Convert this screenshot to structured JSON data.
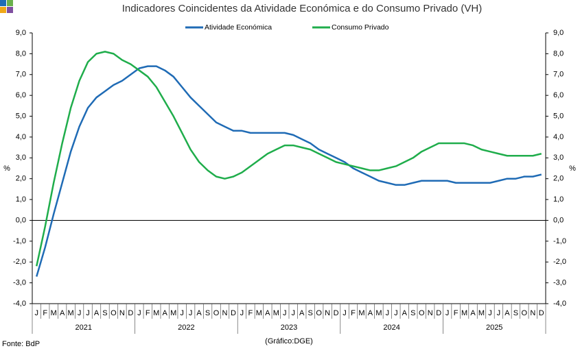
{
  "chart_data": {
    "type": "line",
    "title": "Indicadores Coincidentes da Atividade Económica e do Consumo Privado (VH)",
    "ylabel": "%",
    "y2label": "%",
    "source": "Fonte: BdP",
    "credit": "(Gráfico:DGE)",
    "categories": [
      "J",
      "F",
      "M",
      "A",
      "M",
      "J",
      "J",
      "A",
      "S",
      "O",
      "N",
      "D",
      "J",
      "F",
      "M",
      "A",
      "M",
      "J",
      "J",
      "A",
      "S",
      "O",
      "N",
      "D",
      "J",
      "F",
      "M",
      "A",
      "M",
      "J",
      "J",
      "A",
      "S",
      "O",
      "N",
      "D",
      "J",
      "F",
      "M",
      "A",
      "M",
      "J",
      "J",
      "A",
      "S",
      "O",
      "N",
      "D",
      "J",
      "F",
      "M",
      "A",
      "M",
      "J",
      "J",
      "A",
      "S",
      "O",
      "N",
      "D"
    ],
    "years": [
      "2021",
      "2022",
      "2023",
      "2024",
      "2025"
    ],
    "series": [
      {
        "name": "Atividade Económica",
        "color": "#1f6bb5",
        "values": [
          -2.7,
          -1.3,
          0.3,
          1.8,
          3.3,
          4.5,
          5.4,
          5.9,
          6.2,
          6.5,
          6.7,
          7.0,
          7.3,
          7.4,
          7.4,
          7.2,
          6.9,
          6.4,
          5.9,
          5.5,
          5.1,
          4.7,
          4.5,
          4.3,
          4.3,
          4.2,
          4.2,
          4.2,
          4.2,
          4.2,
          4.1,
          3.9,
          3.7,
          3.4,
          3.2,
          3.0,
          2.8,
          2.5,
          2.3,
          2.1,
          1.9,
          1.8,
          1.7,
          1.7,
          1.8,
          1.9,
          1.9,
          1.9,
          1.9,
          1.8,
          1.8,
          1.8,
          1.8,
          1.8,
          1.9,
          2.0,
          2.0,
          2.1,
          2.1,
          2.2
        ]
      },
      {
        "name": "Consumo Privado",
        "color": "#1fad4b",
        "values": [
          -2.2,
          -0.3,
          1.8,
          3.7,
          5.4,
          6.7,
          7.6,
          8.0,
          8.1,
          8.0,
          7.7,
          7.5,
          7.2,
          6.9,
          6.4,
          5.7,
          5.0,
          4.2,
          3.4,
          2.8,
          2.4,
          2.1,
          2.0,
          2.1,
          2.3,
          2.6,
          2.9,
          3.2,
          3.4,
          3.6,
          3.6,
          3.5,
          3.4,
          3.2,
          3.0,
          2.8,
          2.7,
          2.6,
          2.5,
          2.4,
          2.4,
          2.5,
          2.6,
          2.8,
          3.0,
          3.3,
          3.5,
          3.7,
          3.7,
          3.7,
          3.7,
          3.6,
          3.4,
          3.3,
          3.2,
          3.1,
          3.1,
          3.1,
          3.1,
          3.2
        ]
      }
    ],
    "ylim": [
      -4,
      9
    ],
    "yticks": [
      {
        "value": 9,
        "label": "9,0"
      },
      {
        "value": 8,
        "label": "8,0"
      },
      {
        "value": 7,
        "label": "7,0"
      },
      {
        "value": 6,
        "label": "6,0"
      },
      {
        "value": 5,
        "label": "5,0"
      },
      {
        "value": 4,
        "label": "4,0"
      },
      {
        "value": 3,
        "label": "3,0"
      },
      {
        "value": 2,
        "label": "2,0"
      },
      {
        "value": 1,
        "label": "1,0"
      },
      {
        "value": 0,
        "label": "0,0"
      },
      {
        "value": -1,
        "label": "-1,0"
      },
      {
        "value": -2,
        "label": "-2,0"
      },
      {
        "value": -3,
        "label": "-3,0"
      },
      {
        "value": -4,
        "label": "-4,0"
      }
    ],
    "y2lim": [
      -4,
      9
    ],
    "y2ticks": [
      {
        "value": 9,
        "label": "9,0"
      },
      {
        "value": 8,
        "label": "8,0"
      },
      {
        "value": 7,
        "label": "7,0"
      },
      {
        "value": 6,
        "label": "6,0"
      },
      {
        "value": 5,
        "label": "5,0"
      },
      {
        "value": 4,
        "label": "4,0"
      },
      {
        "value": 3,
        "label": "3,0"
      },
      {
        "value": 2,
        "label": "2,0"
      },
      {
        "value": 1,
        "label": "1,0"
      },
      {
        "value": 0,
        "label": "0,0"
      },
      {
        "value": -1,
        "label": "-1,0"
      },
      {
        "value": -2,
        "label": "-2,0"
      },
      {
        "value": -3,
        "label": "-3,0"
      },
      {
        "value": -4,
        "label": "-4,0"
      }
    ]
  }
}
